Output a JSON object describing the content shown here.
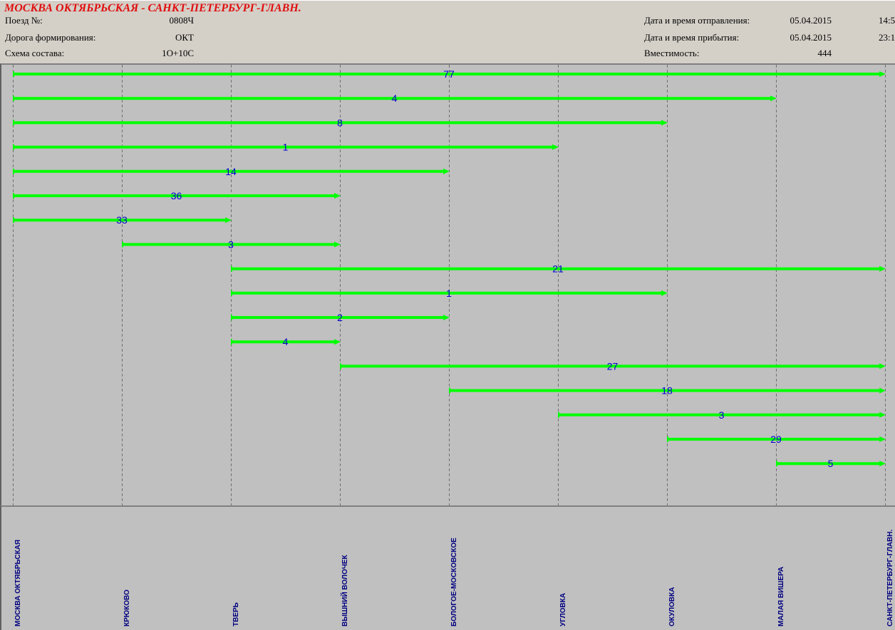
{
  "header": {
    "title": "МОСКВА ОКТЯБРЬСКАЯ - САНКТ-ПЕТЕРБУРГ-ГЛАВН.",
    "train_label": "Поезд №:",
    "train_value": "0808Ч",
    "road_label": "Дорога формирования:",
    "road_value": "ОКТ",
    "scheme_label": "Схема состава:",
    "scheme_value": "1О+10С",
    "departure_label": "Дата и время отправления:",
    "departure_date": "05.04.2015",
    "departure_time": "14:5",
    "arrival_label": "Дата и время прибытия:",
    "arrival_date": "05.04.2015",
    "arrival_time": "23:1",
    "capacity_label": "Вместимость:",
    "capacity_value": "444"
  },
  "chart_data": {
    "type": "segments",
    "stations": [
      "МОСКВА ОКТЯБРЬСКАЯ",
      "КРЮКОВО",
      "ТВЕРЬ",
      "ВЫШНИЙ ВОЛОЧЕК",
      "БОЛОГОЕ-МОСКОВСКОЕ",
      "УГЛОВКА",
      "ОКУЛОВКА",
      "МАЛАЯ ВИШЕРА",
      "САНКТ-ПЕТЕРБУРГ-ГЛАВН."
    ],
    "segments": [
      {
        "from": 0,
        "to": 8,
        "value": "77"
      },
      {
        "from": 0,
        "to": 7,
        "value": "4"
      },
      {
        "from": 0,
        "to": 6,
        "value": "8"
      },
      {
        "from": 0,
        "to": 5,
        "value": "1"
      },
      {
        "from": 0,
        "to": 4,
        "value": "14"
      },
      {
        "from": 0,
        "to": 3,
        "value": "36"
      },
      {
        "from": 0,
        "to": 2,
        "value": "33"
      },
      {
        "from": 1,
        "to": 3,
        "value": "3"
      },
      {
        "from": 2,
        "to": 8,
        "value": "21"
      },
      {
        "from": 2,
        "to": 6,
        "value": "1"
      },
      {
        "from": 2,
        "to": 4,
        "value": "2"
      },
      {
        "from": 2,
        "to": 3,
        "value": "4"
      },
      {
        "from": 3,
        "to": 8,
        "value": "27"
      },
      {
        "from": 4,
        "to": 8,
        "value": "18"
      },
      {
        "from": 5,
        "to": 8,
        "value": "3"
      },
      {
        "from": 6,
        "to": 8,
        "value": "29"
      },
      {
        "from": 7,
        "to": 8,
        "value": "5"
      }
    ],
    "bar_color": "#00ff00",
    "label_color": "#0000d0"
  }
}
